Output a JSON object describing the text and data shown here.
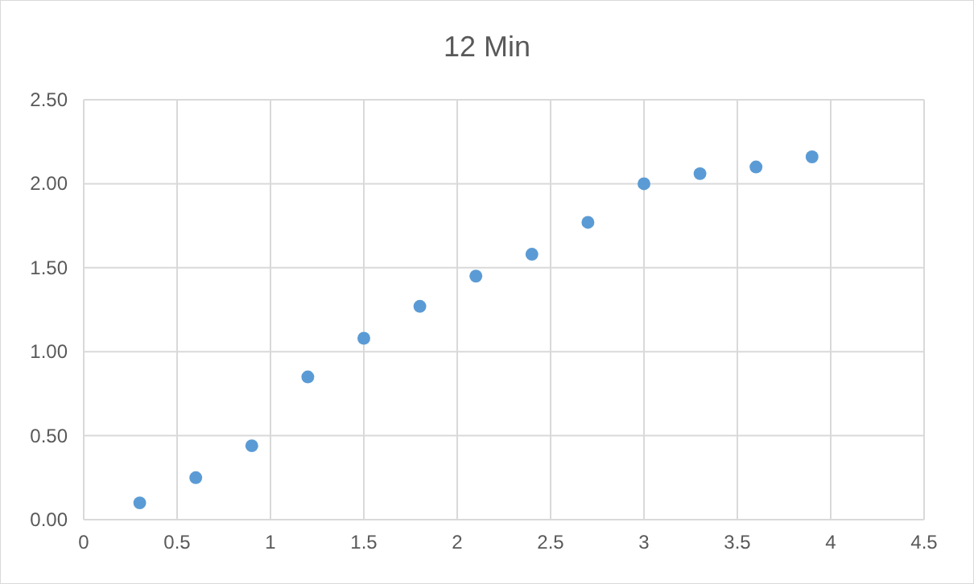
{
  "chart_data": {
    "type": "scatter",
    "title": "12 Min",
    "x": [
      0.3,
      0.6,
      0.9,
      1.2,
      1.5,
      1.8,
      2.1,
      2.4,
      2.7,
      3.0,
      3.3,
      3.6,
      3.9
    ],
    "series": [
      {
        "color": "#5b9bd5",
        "values": [
          0.1,
          0.25,
          0.44,
          0.85,
          1.08,
          1.27,
          1.45,
          1.58,
          1.77,
          2.0,
          2.06,
          2.1,
          2.16
        ]
      }
    ],
    "xlim": [
      0,
      4.5
    ],
    "xticks": [
      0,
      0.5,
      1,
      1.5,
      2,
      2.5,
      3,
      3.5,
      4,
      4.5
    ],
    "ylim": [
      0,
      2.5
    ],
    "yticks": [
      {
        "value": 0,
        "label": "0.00"
      },
      {
        "value": 0.5,
        "label": "0.50"
      },
      {
        "value": 1,
        "label": "1.00"
      },
      {
        "value": 1.5,
        "label": "1.50"
      },
      {
        "value": 2,
        "label": "2.00"
      },
      {
        "value": 2.5,
        "label": "2.50"
      }
    ],
    "grid": true,
    "marker": "circle"
  }
}
